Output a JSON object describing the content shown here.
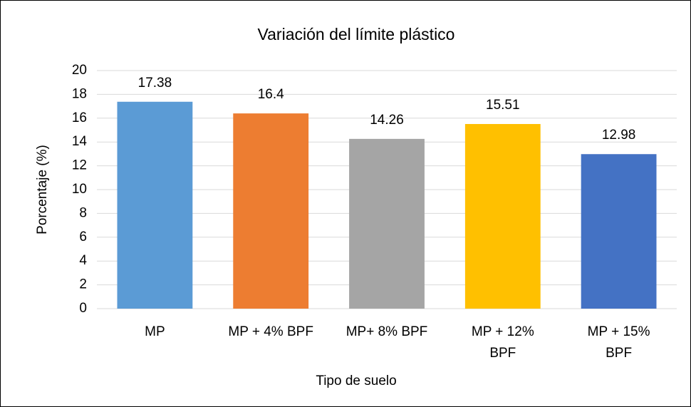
{
  "chart_data": {
    "type": "bar",
    "title": "Variación del límite plástico",
    "categories": [
      "MP",
      "MP + 4% BPF",
      "MP+ 8% BPF",
      "MP + 12% BPF",
      "MP + 15% BPF"
    ],
    "values": [
      17.38,
      16.4,
      14.26,
      15.51,
      12.98
    ],
    "colors": [
      "#5b9bd5",
      "#ed7d31",
      "#a5a5a5",
      "#ffc000",
      "#4472c4"
    ],
    "x_label": "Tipo de suelo",
    "y_label": "Porcentaje (%)",
    "ylim": [
      0,
      20
    ],
    "yticks": [
      0,
      2,
      4,
      6,
      8,
      10,
      12,
      14,
      16,
      18,
      20
    ],
    "grid": true
  }
}
